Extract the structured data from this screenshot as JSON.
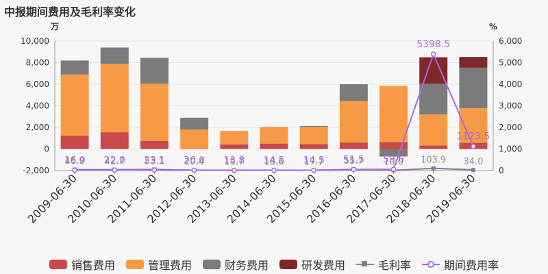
{
  "title": "中报期间费用及毛利率变化",
  "chart_data": {
    "type": "bar",
    "stacked": true,
    "categories": [
      "2009-06-30",
      "2010-06-30",
      "2011-06-30",
      "2012-06-30",
      "2013-06-30",
      "2014-06-30",
      "2015-06-30",
      "2016-06-30",
      "2017-06-30",
      "2018-06-30",
      "2019-06-30"
    ],
    "left_axis": {
      "unit": "万",
      "ylim": [
        -2000,
        10000
      ],
      "ticks": [
        -2000,
        0,
        2000,
        4000,
        6000,
        8000,
        10000
      ],
      "tick_labels": [
        "-2,000",
        "0",
        "2,000",
        "4,000",
        "6,000",
        "8,000",
        "10,000"
      ]
    },
    "right_axis": {
      "unit": "%",
      "ylim": [
        0,
        6000
      ],
      "ticks": [
        0,
        1000,
        2000,
        3000,
        4000,
        5000,
        6000
      ],
      "tick_labels": [
        "0",
        "1,000",
        "2,000",
        "3,000",
        "4,000",
        "5,000",
        "6,000"
      ]
    },
    "series": [
      {
        "name": "销售费用",
        "color": "#c9484a",
        "axis": "left",
        "values": [
          1250,
          1550,
          750,
          50,
          430,
          500,
          450,
          600,
          650,
          320,
          580
        ]
      },
      {
        "name": "管理费用",
        "color": "#f79a45",
        "axis": "left",
        "values": [
          5650,
          6350,
          5300,
          1750,
          1250,
          1550,
          1600,
          3850,
          5200,
          2880,
          3200
        ]
      },
      {
        "name": "财务费用",
        "color": "#7b7b7b",
        "axis": "left",
        "values": [
          1300,
          1500,
          2400,
          1100,
          0,
          0,
          80,
          1550,
          -700,
          2850,
          3750
        ]
      },
      {
        "name": "研发费用",
        "color": "#7f2828",
        "axis": "left",
        "values": [
          0,
          0,
          0,
          0,
          0,
          0,
          0,
          0,
          0,
          2450,
          1000
        ]
      }
    ],
    "lines": [
      {
        "name": "毛利率",
        "color": "#8e7b96",
        "marker": "square",
        "axis": "right",
        "values": [
          46.9,
          42.7,
          53.1,
          20.4,
          19.7,
          18.6,
          17.7,
          55.7,
          10.0,
          103.9,
          34.0
        ],
        "labels": [
          "46.9",
          "42.7",
          "53.1",
          "20.4",
          "19.7",
          "18.6",
          "17.7",
          "55.7",
          "10.0",
          "103.9",
          "34.0"
        ]
      },
      {
        "name": "期间费用率",
        "color": "#a86bd9",
        "marker": "circle",
        "axis": "right",
        "values": [
          16.9,
          22.0,
          23.1,
          20.0,
          13.8,
          14.5,
          14.5,
          51.5,
          59.6,
          5398.5,
          1123.5
        ],
        "labels": [
          "16.9",
          "22.0",
          "23.1",
          "20.0",
          "13.8",
          "14.5",
          "14.5",
          "51.5",
          "59.6",
          "5398.5",
          "1123.5"
        ]
      }
    ],
    "grid": true,
    "legend_position": "bottom"
  }
}
